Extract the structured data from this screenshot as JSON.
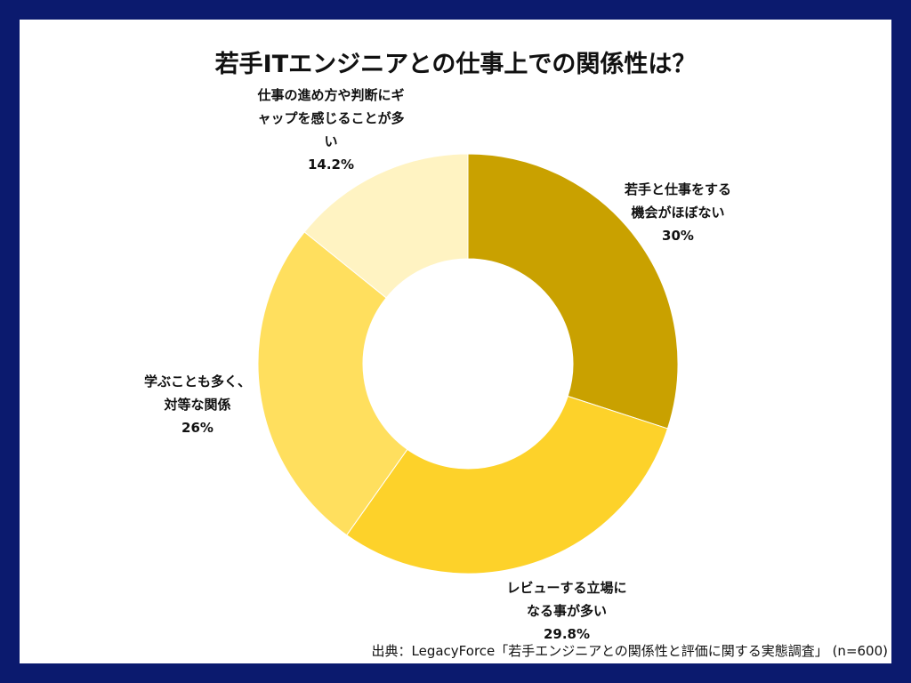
{
  "chart_data": {
    "type": "pie",
    "title": "若手ITエンジニアとの仕事上での関係性は？",
    "slices": [
      {
        "label": "若手と仕事をする\n機会がほぼない",
        "value": 30,
        "value_label": "30%",
        "color": "#c9a100"
      },
      {
        "label": "レビューする立場に\nなる事が多い",
        "value": 29.8,
        "value_label": "29.8%",
        "color": "#fdd22a"
      },
      {
        "label": "学ぶことも多く、\n対等な関係",
        "value": 26,
        "value_label": "26%",
        "color": "#ffdf5e"
      },
      {
        "label": "仕事の進め方や判断にギ\nャップを感じることが多\nい",
        "value": 14.2,
        "value_label": "14.2%",
        "color": "#fff3c2"
      }
    ],
    "donut": true,
    "start": "top",
    "direction": "clockwise"
  },
  "source": "出典：LegacyForce「若手エンジニアとの関係性と評価に関する実態調査」 (n=600)",
  "background_color": "#0b1a6e"
}
